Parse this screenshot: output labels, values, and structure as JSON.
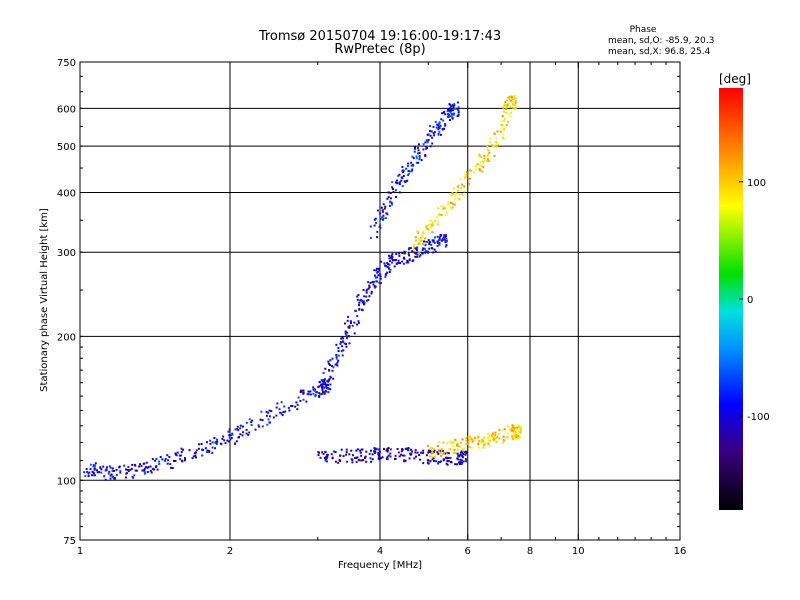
{
  "chart_data": {
    "type": "scatter",
    "title": "Tromsø 20150704 19:16:00-19:17:43",
    "subtitle": "RwPretec (8p)",
    "xlabel": "Frequency [MHz]",
    "ylabel": "Stationary phase Virtual Height [km]",
    "x_scale": "log",
    "y_scale": "log",
    "xlim": [
      1,
      16
    ],
    "ylim": [
      75,
      750
    ],
    "x_ticks": [
      1,
      2,
      4,
      6,
      8,
      10,
      16
    ],
    "y_ticks": [
      75,
      100,
      200,
      300,
      400,
      500,
      600,
      750
    ],
    "grid": true,
    "stats": {
      "title": "Phase",
      "line_o": "mean, sd,O: -85.9, 20.3",
      "line_x": "mean, sd,X:  96.8, 25.4"
    },
    "colorbar": {
      "label": "[deg]",
      "range": [
        -180,
        180
      ],
      "ticks": [
        100,
        0,
        -100
      ]
    },
    "traces": [
      {
        "name": "o-lower",
        "f": [
          1.03,
          1.1,
          1.2,
          1.35,
          1.5,
          1.7,
          1.9,
          2.1,
          2.4,
          2.8,
          3.1
        ],
        "h": [
          106,
          104,
          104,
          106,
          110,
          115,
          120,
          127,
          137,
          150,
          158
        ],
        "phase": -95
      },
      {
        "name": "o-es",
        "f": [
          3.0,
          3.3,
          3.7,
          4.0,
          4.4,
          4.8,
          5.3,
          5.8
        ],
        "h": [
          112,
          113,
          113,
          114,
          114,
          113,
          112,
          112
        ],
        "phase": -110
      },
      {
        "name": "o-f",
        "f": [
          3.0,
          3.2,
          3.4,
          3.6,
          3.8,
          4.0,
          4.3,
          4.6,
          5.0,
          5.3
        ],
        "h": [
          150,
          175,
          200,
          230,
          255,
          275,
          290,
          300,
          310,
          320
        ],
        "phase": -100
      },
      {
        "name": "o-f2",
        "f": [
          3.9,
          4.1,
          4.4,
          4.7,
          5.0,
          5.3,
          5.6
        ],
        "h": [
          330,
          380,
          430,
          470,
          520,
          560,
          600
        ],
        "phase": -90
      },
      {
        "name": "x-f",
        "f": [
          4.6,
          5.0,
          5.5,
          6.0,
          6.5,
          7.0,
          7.3
        ],
        "h": [
          300,
          340,
          380,
          430,
          480,
          540,
          620
        ],
        "phase": 95
      },
      {
        "name": "x-lower",
        "f": [
          5.0,
          5.5,
          6.0,
          6.5,
          7.0,
          7.5
        ],
        "h": [
          115,
          118,
          120,
          122,
          125,
          127
        ],
        "phase": 100
      }
    ]
  }
}
